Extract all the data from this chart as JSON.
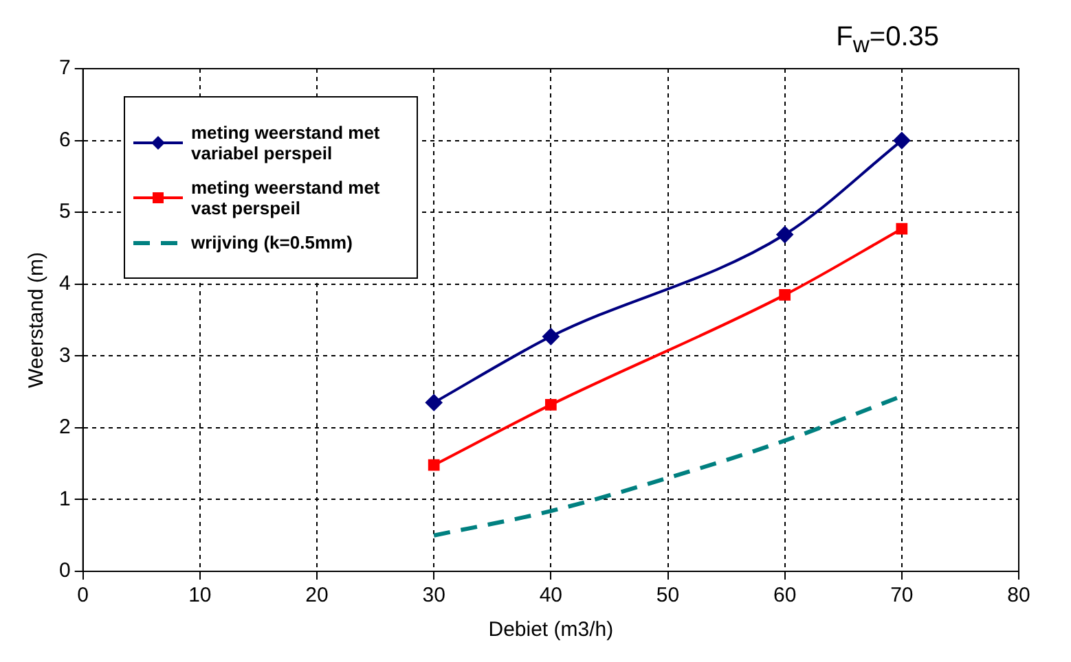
{
  "chart_data": {
    "type": "line",
    "title": "F$_{w}$=0.35",
    "xlabel": "Debiet (m3/h)",
    "ylabel": "Weerstand (m)",
    "xlim": [
      0,
      80
    ],
    "xticks": [
      0,
      10,
      20,
      30,
      40,
      50,
      60,
      70,
      80
    ],
    "ylim": [
      0,
      7
    ],
    "yticks": [
      0,
      1,
      2,
      3,
      4,
      5,
      6,
      7
    ],
    "grid": true,
    "legend": "top left",
    "series": [
      {
        "name": "meting weerstand met variabel perspeil",
        "color": "#000080",
        "x": [
          30,
          40,
          60,
          70
        ],
        "values": [
          2.35,
          3.27,
          4.69,
          6.0
        ],
        "marker": "diamond",
        "line_style": "solid"
      },
      {
        "name": "meting weerstand met vast perspeil",
        "color": "#ff0000",
        "x": [
          30,
          40,
          60,
          70
        ],
        "values": [
          1.48,
          2.32,
          3.85,
          4.77
        ],
        "marker": "square",
        "line_style": "solid"
      },
      {
        "name": "wrijving (k=0.5mm)",
        "color": "#008080",
        "x": [
          30,
          40,
          50,
          60,
          70
        ],
        "values": [
          0.5,
          0.84,
          1.3,
          1.82,
          2.44
        ],
        "marker": "none",
        "line_style": "dashed"
      }
    ]
  }
}
